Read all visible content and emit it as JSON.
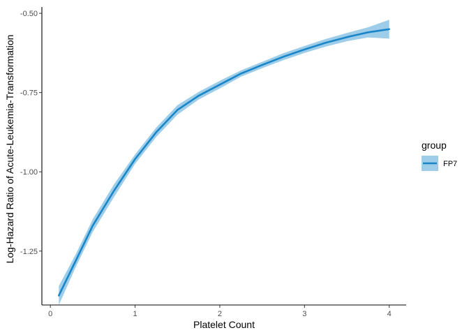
{
  "chart_data": {
    "type": "line",
    "xlabel": "Platelet Count",
    "ylabel": "Log-Hazard Ratio of Acute-Leukemia-Transformation",
    "xlim": [
      -0.1,
      4.2
    ],
    "ylim": [
      -1.42,
      -0.48
    ],
    "x_ticks": [
      "0",
      "1",
      "2",
      "3",
      "4"
    ],
    "y_ticks": [
      "-0.50",
      "-0.75",
      "-1.00",
      "-1.25"
    ],
    "grid": false,
    "legend": {
      "title": "group",
      "position": "right"
    },
    "colors": {
      "line": "#1a86c8",
      "ribbon": "#9dcde8",
      "axis": "#000000",
      "tick_text": "#4d4d4d"
    },
    "series": [
      {
        "name": "FP7",
        "x": [
          0.1,
          0.3,
          0.5,
          0.75,
          1.0,
          1.25,
          1.5,
          1.75,
          2.0,
          2.25,
          2.5,
          2.75,
          3.0,
          3.25,
          3.5,
          3.75,
          4.0
        ],
        "y": [
          -1.39,
          -1.28,
          -1.17,
          -1.06,
          -0.96,
          -0.875,
          -0.805,
          -0.76,
          -0.725,
          -0.69,
          -0.663,
          -0.637,
          -0.614,
          -0.593,
          -0.575,
          -0.56,
          -0.55
        ],
        "lower": [
          -1.42,
          -1.3,
          -1.19,
          -1.08,
          -0.975,
          -0.89,
          -0.82,
          -0.772,
          -0.737,
          -0.7,
          -0.673,
          -0.648,
          -0.625,
          -0.605,
          -0.588,
          -0.576,
          -0.58
        ],
        "upper": [
          -1.36,
          -1.26,
          -1.15,
          -1.04,
          -0.945,
          -0.86,
          -0.79,
          -0.748,
          -0.713,
          -0.68,
          -0.653,
          -0.626,
          -0.603,
          -0.581,
          -0.562,
          -0.544,
          -0.52
        ]
      }
    ]
  }
}
